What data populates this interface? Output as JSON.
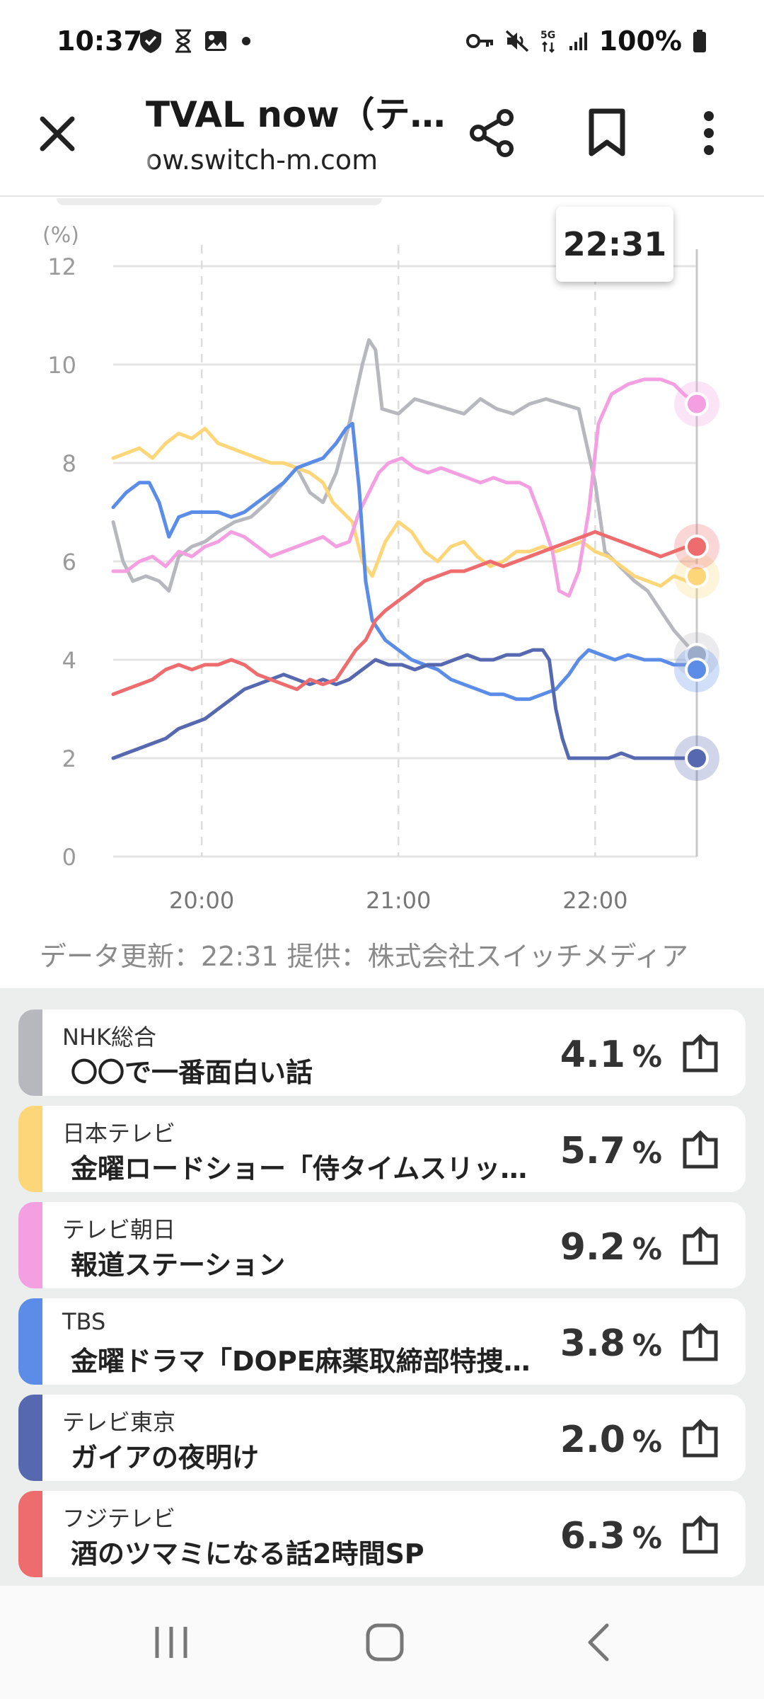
{
  "status_bar": {
    "time": "10:37",
    "battery_text": "100%"
  },
  "toolbar": {
    "title": "TVAL now（テ…",
    "url": "ow.switch-m.com"
  },
  "chart_data": {
    "type": "line",
    "ylabel": "(%)",
    "ylim": [
      0,
      12
    ],
    "y_ticks": [
      "0",
      "2",
      "4",
      "6",
      "8",
      "10",
      "12"
    ],
    "x_tick_labels": [
      "20:00",
      "21:00",
      "22:00"
    ],
    "x_tick_minutes": [
      1200,
      1260,
      1320
    ],
    "x_range_minutes": [
      1173,
      1351
    ],
    "grid": true,
    "cursor_time": "22:31",
    "series": [
      {
        "name": "NHK総合",
        "color": "#b6b8bd",
        "points": [
          [
            1173,
            6.8
          ],
          [
            1176,
            6.0
          ],
          [
            1179,
            5.6
          ],
          [
            1183,
            5.7
          ],
          [
            1187,
            5.6
          ],
          [
            1190,
            5.4
          ],
          [
            1193,
            6.1
          ],
          [
            1197,
            6.3
          ],
          [
            1201,
            6.4
          ],
          [
            1205,
            6.6
          ],
          [
            1210,
            6.8
          ],
          [
            1215,
            6.9
          ],
          [
            1220,
            7.2
          ],
          [
            1225,
            7.6
          ],
          [
            1229,
            7.9
          ],
          [
            1233,
            7.4
          ],
          [
            1237,
            7.2
          ],
          [
            1241,
            7.8
          ],
          [
            1245,
            8.8
          ],
          [
            1249,
            10.0
          ],
          [
            1251,
            10.5
          ],
          [
            1253,
            10.3
          ],
          [
            1255,
            9.1
          ],
          [
            1260,
            9.0
          ],
          [
            1265,
            9.3
          ],
          [
            1270,
            9.2
          ],
          [
            1275,
            9.1
          ],
          [
            1280,
            9.0
          ],
          [
            1285,
            9.3
          ],
          [
            1290,
            9.1
          ],
          [
            1295,
            9.0
          ],
          [
            1300,
            9.2
          ],
          [
            1305,
            9.3
          ],
          [
            1310,
            9.2
          ],
          [
            1315,
            9.1
          ],
          [
            1317,
            8.5
          ],
          [
            1320,
            7.6
          ],
          [
            1323,
            6.2
          ],
          [
            1326,
            6.0
          ],
          [
            1329,
            5.8
          ],
          [
            1332,
            5.6
          ],
          [
            1336,
            5.4
          ],
          [
            1340,
            5.0
          ],
          [
            1344,
            4.6
          ],
          [
            1348,
            4.3
          ],
          [
            1351,
            4.1
          ]
        ]
      },
      {
        "name": "日本テレビ",
        "color": "#fcd679",
        "points": [
          [
            1173,
            8.1
          ],
          [
            1177,
            8.2
          ],
          [
            1181,
            8.3
          ],
          [
            1185,
            8.1
          ],
          [
            1189,
            8.4
          ],
          [
            1193,
            8.6
          ],
          [
            1197,
            8.5
          ],
          [
            1201,
            8.7
          ],
          [
            1205,
            8.4
          ],
          [
            1209,
            8.3
          ],
          [
            1213,
            8.2
          ],
          [
            1217,
            8.1
          ],
          [
            1221,
            8.0
          ],
          [
            1225,
            8.0
          ],
          [
            1229,
            7.9
          ],
          [
            1233,
            7.8
          ],
          [
            1237,
            7.6
          ],
          [
            1240,
            7.2
          ],
          [
            1243,
            7.0
          ],
          [
            1246,
            6.8
          ],
          [
            1249,
            6.0
          ],
          [
            1252,
            5.7
          ],
          [
            1256,
            6.4
          ],
          [
            1260,
            6.8
          ],
          [
            1264,
            6.6
          ],
          [
            1268,
            6.2
          ],
          [
            1272,
            6.0
          ],
          [
            1276,
            6.3
          ],
          [
            1280,
            6.4
          ],
          [
            1284,
            6.1
          ],
          [
            1288,
            5.9
          ],
          [
            1292,
            6.0
          ],
          [
            1296,
            6.2
          ],
          [
            1300,
            6.2
          ],
          [
            1304,
            6.3
          ],
          [
            1308,
            6.2
          ],
          [
            1312,
            6.3
          ],
          [
            1316,
            6.4
          ],
          [
            1320,
            6.2
          ],
          [
            1324,
            6.1
          ],
          [
            1328,
            5.9
          ],
          [
            1332,
            5.7
          ],
          [
            1336,
            5.6
          ],
          [
            1340,
            5.5
          ],
          [
            1344,
            5.7
          ],
          [
            1348,
            5.6
          ],
          [
            1351,
            5.7
          ]
        ]
      },
      {
        "name": "テレビ朝日",
        "color": "#f49fe1",
        "points": [
          [
            1173,
            5.8
          ],
          [
            1177,
            5.8
          ],
          [
            1181,
            6.0
          ],
          [
            1185,
            6.1
          ],
          [
            1189,
            5.9
          ],
          [
            1193,
            6.2
          ],
          [
            1197,
            6.1
          ],
          [
            1201,
            6.3
          ],
          [
            1205,
            6.4
          ],
          [
            1209,
            6.6
          ],
          [
            1213,
            6.5
          ],
          [
            1217,
            6.3
          ],
          [
            1221,
            6.1
          ],
          [
            1225,
            6.2
          ],
          [
            1229,
            6.3
          ],
          [
            1233,
            6.4
          ],
          [
            1237,
            6.5
          ],
          [
            1241,
            6.3
          ],
          [
            1245,
            6.4
          ],
          [
            1248,
            7.0
          ],
          [
            1251,
            7.4
          ],
          [
            1254,
            7.8
          ],
          [
            1257,
            8.0
          ],
          [
            1261,
            8.1
          ],
          [
            1265,
            7.9
          ],
          [
            1269,
            7.8
          ],
          [
            1273,
            7.9
          ],
          [
            1277,
            7.8
          ],
          [
            1281,
            7.7
          ],
          [
            1285,
            7.6
          ],
          [
            1289,
            7.7
          ],
          [
            1293,
            7.6
          ],
          [
            1297,
            7.6
          ],
          [
            1300,
            7.5
          ],
          [
            1304,
            6.8
          ],
          [
            1307,
            6.2
          ],
          [
            1309,
            5.4
          ],
          [
            1312,
            5.3
          ],
          [
            1315,
            5.8
          ],
          [
            1318,
            7.0
          ],
          [
            1321,
            8.8
          ],
          [
            1325,
            9.4
          ],
          [
            1330,
            9.6
          ],
          [
            1335,
            9.7
          ],
          [
            1340,
            9.7
          ],
          [
            1344,
            9.6
          ],
          [
            1347,
            9.4
          ],
          [
            1351,
            9.2
          ]
        ]
      },
      {
        "name": "TBS",
        "color": "#5b8de8",
        "points": [
          [
            1173,
            7.1
          ],
          [
            1177,
            7.4
          ],
          [
            1181,
            7.6
          ],
          [
            1184,
            7.6
          ],
          [
            1187,
            7.2
          ],
          [
            1190,
            6.5
          ],
          [
            1193,
            6.9
          ],
          [
            1197,
            7.0
          ],
          [
            1201,
            7.0
          ],
          [
            1205,
            7.0
          ],
          [
            1209,
            6.9
          ],
          [
            1213,
            7.0
          ],
          [
            1217,
            7.2
          ],
          [
            1221,
            7.4
          ],
          [
            1225,
            7.6
          ],
          [
            1229,
            7.9
          ],
          [
            1233,
            8.0
          ],
          [
            1237,
            8.1
          ],
          [
            1241,
            8.4
          ],
          [
            1244,
            8.7
          ],
          [
            1246,
            8.8
          ],
          [
            1248,
            7.5
          ],
          [
            1250,
            5.6
          ],
          [
            1252,
            4.8
          ],
          [
            1254,
            4.6
          ],
          [
            1256,
            4.4
          ],
          [
            1260,
            4.2
          ],
          [
            1264,
            4.0
          ],
          [
            1268,
            3.9
          ],
          [
            1272,
            3.8
          ],
          [
            1276,
            3.6
          ],
          [
            1280,
            3.5
          ],
          [
            1284,
            3.4
          ],
          [
            1288,
            3.3
          ],
          [
            1292,
            3.3
          ],
          [
            1296,
            3.2
          ],
          [
            1300,
            3.2
          ],
          [
            1304,
            3.3
          ],
          [
            1308,
            3.4
          ],
          [
            1312,
            3.7
          ],
          [
            1315,
            4.0
          ],
          [
            1318,
            4.2
          ],
          [
            1322,
            4.1
          ],
          [
            1326,
            4.0
          ],
          [
            1330,
            4.1
          ],
          [
            1335,
            4.0
          ],
          [
            1340,
            4.0
          ],
          [
            1344,
            3.9
          ],
          [
            1348,
            3.9
          ],
          [
            1351,
            3.8
          ]
        ]
      },
      {
        "name": "テレビ東京",
        "color": "#5668b0",
        "points": [
          [
            1173,
            2.0
          ],
          [
            1177,
            2.1
          ],
          [
            1181,
            2.2
          ],
          [
            1185,
            2.3
          ],
          [
            1189,
            2.4
          ],
          [
            1193,
            2.6
          ],
          [
            1197,
            2.7
          ],
          [
            1201,
            2.8
          ],
          [
            1205,
            3.0
          ],
          [
            1209,
            3.2
          ],
          [
            1213,
            3.4
          ],
          [
            1217,
            3.5
          ],
          [
            1221,
            3.6
          ],
          [
            1225,
            3.7
          ],
          [
            1229,
            3.6
          ],
          [
            1233,
            3.5
          ],
          [
            1237,
            3.6
          ],
          [
            1241,
            3.5
          ],
          [
            1245,
            3.6
          ],
          [
            1249,
            3.8
          ],
          [
            1253,
            4.0
          ],
          [
            1257,
            3.9
          ],
          [
            1261,
            3.9
          ],
          [
            1265,
            3.8
          ],
          [
            1269,
            3.9
          ],
          [
            1273,
            3.9
          ],
          [
            1277,
            4.0
          ],
          [
            1281,
            4.1
          ],
          [
            1285,
            4.0
          ],
          [
            1289,
            4.0
          ],
          [
            1293,
            4.1
          ],
          [
            1297,
            4.1
          ],
          [
            1301,
            4.2
          ],
          [
            1304,
            4.2
          ],
          [
            1306,
            4.0
          ],
          [
            1308,
            3.0
          ],
          [
            1310,
            2.4
          ],
          [
            1312,
            2.0
          ],
          [
            1316,
            2.0
          ],
          [
            1320,
            2.0
          ],
          [
            1324,
            2.0
          ],
          [
            1328,
            2.1
          ],
          [
            1332,
            2.0
          ],
          [
            1336,
            2.0
          ],
          [
            1340,
            2.0
          ],
          [
            1344,
            2.0
          ],
          [
            1348,
            2.0
          ],
          [
            1351,
            2.0
          ]
        ]
      },
      {
        "name": "フジテレビ",
        "color": "#ee6c6d",
        "points": [
          [
            1173,
            3.3
          ],
          [
            1177,
            3.4
          ],
          [
            1181,
            3.5
          ],
          [
            1185,
            3.6
          ],
          [
            1189,
            3.8
          ],
          [
            1193,
            3.9
          ],
          [
            1197,
            3.8
          ],
          [
            1201,
            3.9
          ],
          [
            1205,
            3.9
          ],
          [
            1209,
            4.0
          ],
          [
            1213,
            3.9
          ],
          [
            1217,
            3.7
          ],
          [
            1221,
            3.6
          ],
          [
            1225,
            3.5
          ],
          [
            1229,
            3.4
          ],
          [
            1233,
            3.6
          ],
          [
            1237,
            3.5
          ],
          [
            1241,
            3.6
          ],
          [
            1244,
            3.9
          ],
          [
            1247,
            4.2
          ],
          [
            1250,
            4.4
          ],
          [
            1253,
            4.8
          ],
          [
            1256,
            5.0
          ],
          [
            1260,
            5.2
          ],
          [
            1264,
            5.4
          ],
          [
            1268,
            5.6
          ],
          [
            1272,
            5.7
          ],
          [
            1276,
            5.8
          ],
          [
            1280,
            5.8
          ],
          [
            1284,
            5.9
          ],
          [
            1288,
            6.0
          ],
          [
            1292,
            5.9
          ],
          [
            1296,
            6.0
          ],
          [
            1300,
            6.1
          ],
          [
            1304,
            6.2
          ],
          [
            1308,
            6.3
          ],
          [
            1312,
            6.4
          ],
          [
            1316,
            6.5
          ],
          [
            1320,
            6.6
          ],
          [
            1324,
            6.5
          ],
          [
            1328,
            6.4
          ],
          [
            1332,
            6.3
          ],
          [
            1336,
            6.2
          ],
          [
            1340,
            6.1
          ],
          [
            1344,
            6.2
          ],
          [
            1348,
            6.3
          ],
          [
            1351,
            6.3
          ]
        ]
      }
    ]
  },
  "footer": {
    "data_update": "データ更新：22:31 提供：株式会社スイッチメディア"
  },
  "channels": [
    {
      "channel": "NHK総合",
      "program": "〇〇で一番面白い話",
      "value": "4.1",
      "unit": "%",
      "color": "#b6b8bd"
    },
    {
      "channel": "日本テレビ",
      "program": "金曜ロードショー「侍タイムスリッ…",
      "value": "5.7",
      "unit": "%",
      "color": "#fcd679"
    },
    {
      "channel": "テレビ朝日",
      "program": "報道ステーション",
      "value": "9.2",
      "unit": "%",
      "color": "#f49fe1"
    },
    {
      "channel": "TBS",
      "program": "金曜ドラマ「DOPE麻薬取締部特捜…",
      "value": "3.8",
      "unit": "%",
      "color": "#5b8de8"
    },
    {
      "channel": "テレビ東京",
      "program": "ガイアの夜明け",
      "value": "2.0",
      "unit": "%",
      "color": "#5668b0"
    },
    {
      "channel": "フジテレビ",
      "program": "酒のツマミになる話2時間SP",
      "value": "6.3",
      "unit": "%",
      "color": "#ee6c6d"
    }
  ],
  "icons": {
    "close": "close-icon",
    "share": "share-icon",
    "bookmark": "bookmark-icon",
    "more": "more-vert-icon",
    "nav_recent": "recent-apps-icon",
    "nav_home": "home-icon",
    "nav_back": "back-icon"
  }
}
